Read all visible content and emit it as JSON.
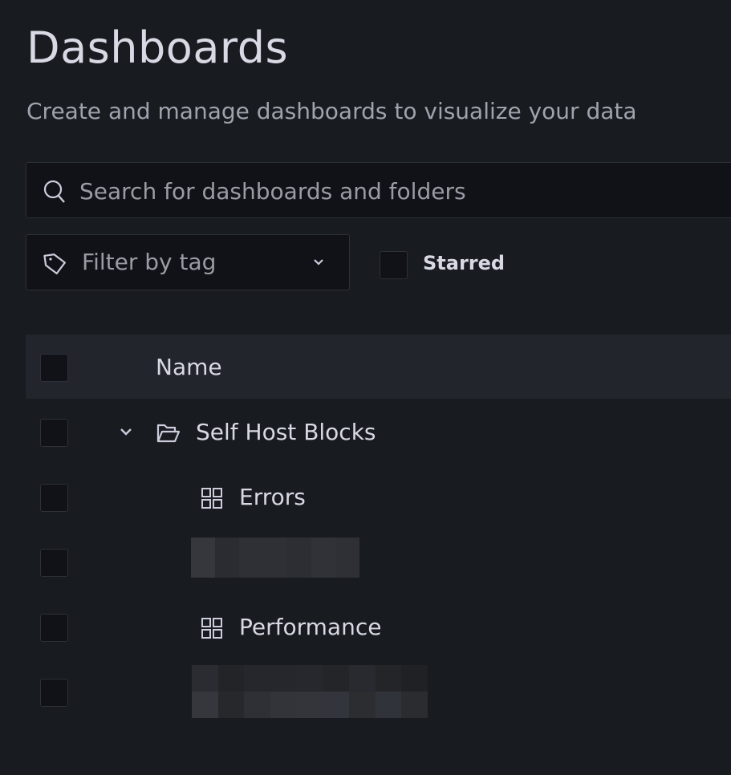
{
  "page": {
    "title": "Dashboards",
    "subtitle": "Create and manage dashboards to visualize your data"
  },
  "search": {
    "placeholder": "Search for dashboards and folders",
    "icon": "search-icon"
  },
  "filters": {
    "tag_placeholder": "Filter by tag",
    "starred_label": "Starred",
    "starred_checked": false
  },
  "table": {
    "header": {
      "name": "Name"
    },
    "rows": [
      {
        "type": "folder",
        "name": "Self Host Blocks",
        "expanded": true,
        "icon": "folder-open-icon"
      },
      {
        "type": "dashboard",
        "name": "Errors",
        "icon": "apps-icon"
      },
      {
        "type": "redacted"
      },
      {
        "type": "dashboard",
        "name": "Performance",
        "icon": "apps-icon"
      },
      {
        "type": "redacted"
      }
    ]
  },
  "colors": {
    "background": "#181b1f",
    "header_row": "#22252b",
    "input_bg": "#111217",
    "border": "#2d3038",
    "text": "#d8d9e4"
  }
}
